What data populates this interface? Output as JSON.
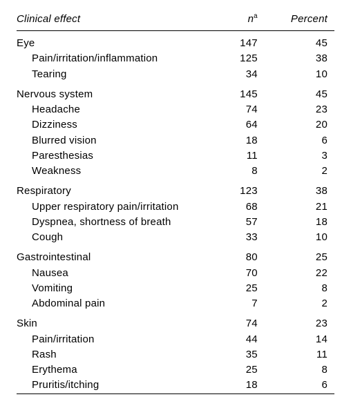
{
  "table": {
    "headers": {
      "effect": "Clinical effect",
      "n": "n",
      "n_sup": "a",
      "percent": "Percent"
    },
    "columns": [
      {
        "key": "label",
        "width_pct": 58,
        "align": "left"
      },
      {
        "key": "n",
        "width_pct": 20,
        "align": "right"
      },
      {
        "key": "percent",
        "width_pct": 22,
        "align": "right"
      }
    ],
    "colors": {
      "background": "#ffffff",
      "text": "#000000",
      "rule": "#000000"
    },
    "font": {
      "family": "Helvetica Neue, Helvetica, Arial, sans-serif",
      "size_pt": 11,
      "header_style": "italic"
    },
    "groups": [
      {
        "label": "Eye",
        "n": 147,
        "percent": 45,
        "items": [
          {
            "label": "Pain/irritation/inflammation",
            "n": 125,
            "percent": 38
          },
          {
            "label": "Tearing",
            "n": 34,
            "percent": 10
          }
        ]
      },
      {
        "label": "Nervous system",
        "n": 145,
        "percent": 45,
        "items": [
          {
            "label": "Headache",
            "n": 74,
            "percent": 23
          },
          {
            "label": "Dizziness",
            "n": 64,
            "percent": 20
          },
          {
            "label": "Blurred vision",
            "n": 18,
            "percent": 6
          },
          {
            "label": "Paresthesias",
            "n": 11,
            "percent": 3
          },
          {
            "label": "Weakness",
            "n": 8,
            "percent": 2
          }
        ]
      },
      {
        "label": "Respiratory",
        "n": 123,
        "percent": 38,
        "items": [
          {
            "label": "Upper respiratory pain/irritation",
            "n": 68,
            "percent": 21
          },
          {
            "label": "Dyspnea, shortness of breath",
            "n": 57,
            "percent": 18
          },
          {
            "label": "Cough",
            "n": 33,
            "percent": 10
          }
        ]
      },
      {
        "label": "Gastrointestinal",
        "n": 80,
        "percent": 25,
        "items": [
          {
            "label": "Nausea",
            "n": 70,
            "percent": 22
          },
          {
            "label": "Vomiting",
            "n": 25,
            "percent": 8
          },
          {
            "label": "Abdominal pain",
            "n": 7,
            "percent": 2
          }
        ]
      },
      {
        "label": "Skin",
        "n": 74,
        "percent": 23,
        "items": [
          {
            "label": "Pain/irritation",
            "n": 44,
            "percent": 14
          },
          {
            "label": "Rash",
            "n": 35,
            "percent": 11
          },
          {
            "label": "Erythema",
            "n": 25,
            "percent": 8
          },
          {
            "label": "Pruritis/itching",
            "n": 18,
            "percent": 6
          }
        ]
      }
    ]
  }
}
